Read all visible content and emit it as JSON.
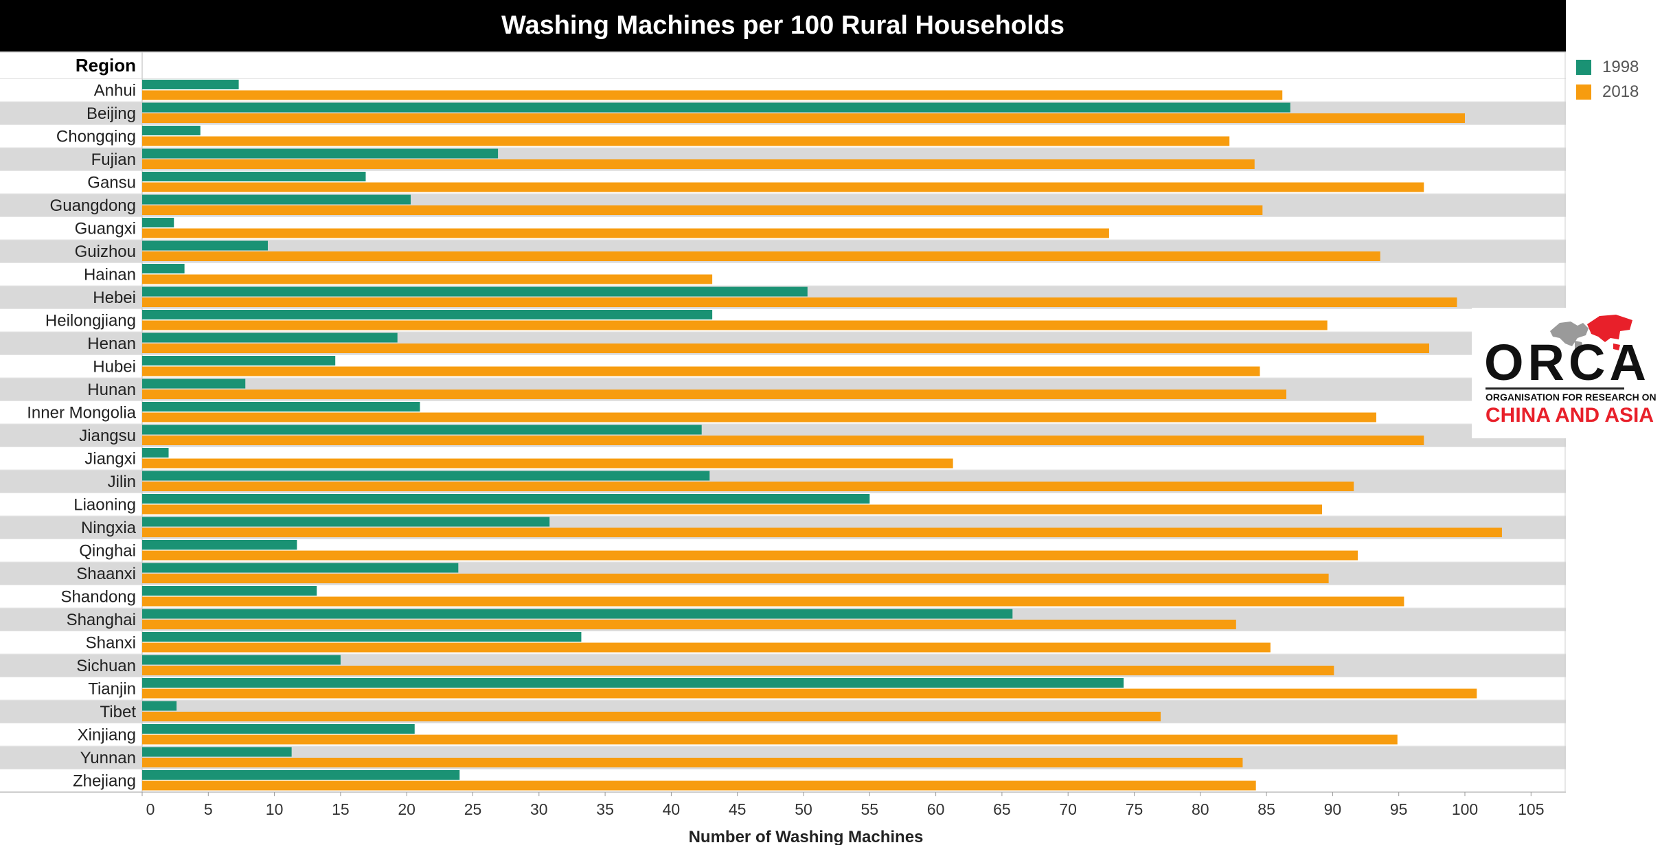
{
  "chart_data": {
    "type": "bar",
    "orientation": "horizontal",
    "title": "Washing Machines per 100 Rural Households",
    "row_header": "Region",
    "xlabel": "Number of Washing Machines",
    "xlim": [
      0,
      108
    ],
    "xticks": [
      0,
      5,
      10,
      15,
      20,
      25,
      30,
      35,
      40,
      45,
      50,
      55,
      60,
      65,
      70,
      75,
      80,
      85,
      90,
      95,
      100,
      105
    ],
    "categories": [
      "Anhui",
      "Beijing",
      "Chongqing",
      "Fujian",
      "Gansu",
      "Guangdong",
      "Guangxi",
      "Guizhou",
      "Hainan",
      "Hebei",
      "Heilongjiang",
      "Henan",
      "Hubei",
      "Hunan",
      "Inner Mongolia",
      "Jiangsu",
      "Jiangxi",
      "Jilin",
      "Liaoning",
      "Ningxia",
      "Qinghai",
      "Shaanxi",
      "Shandong",
      "Shanghai",
      "Shanxi",
      "Sichuan",
      "Tianjin",
      "Tibet",
      "Xinjiang",
      "Yunnan",
      "Zhejiang"
    ],
    "series": [
      {
        "name": "1998",
        "color": "#1a9274",
        "values": [
          7.3,
          86.8,
          4.4,
          26.9,
          16.9,
          20.3,
          2.4,
          9.5,
          3.2,
          50.3,
          43.1,
          19.3,
          14.6,
          7.8,
          21.0,
          42.3,
          2.0,
          42.9,
          55.0,
          30.8,
          11.7,
          23.9,
          13.2,
          65.8,
          33.2,
          15.0,
          74.2,
          2.6,
          20.6,
          11.3,
          24.0
        ]
      },
      {
        "name": "2018",
        "color": "#f79c0f",
        "values": [
          86.2,
          100.0,
          82.2,
          84.1,
          96.9,
          84.7,
          73.1,
          93.6,
          43.1,
          99.4,
          89.6,
          97.3,
          84.5,
          86.5,
          93.3,
          96.9,
          61.3,
          91.6,
          89.2,
          102.8,
          91.9,
          89.7,
          95.4,
          82.7,
          85.3,
          90.1,
          100.9,
          77.0,
          94.9,
          83.2,
          84.2
        ]
      }
    ],
    "legend_position": "top-right",
    "row_banding": true
  },
  "logo": {
    "wordmark": "ORCA",
    "tagline": "ORGANISATION FOR RESEARCH ON",
    "subtitle": "CHINA AND ASIA"
  },
  "colors": {
    "band": "#d9d9d9",
    "accent_red": "#e8202a"
  }
}
